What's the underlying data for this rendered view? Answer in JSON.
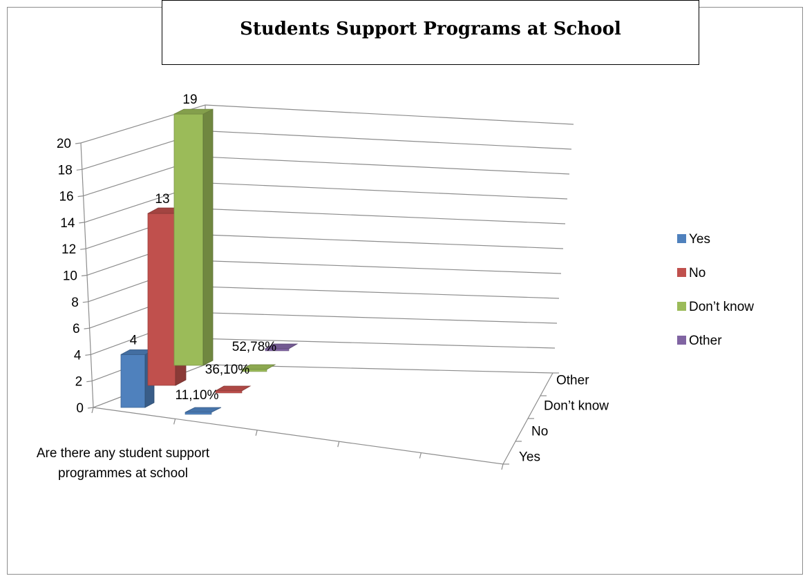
{
  "chart_data": {
    "type": "bar",
    "title": "Students Support Programs at School",
    "categories": [
      "Are there any student support programmes at school"
    ],
    "depth_categories": [
      "Yes",
      "No",
      "Don’t know",
      "Other"
    ],
    "series": [
      {
        "name": "Yes",
        "color": "#4f81bd",
        "count": 4,
        "percent_label": "11,10%"
      },
      {
        "name": "No",
        "color": "#c0504d",
        "count": 13,
        "percent_label": "36,10%"
      },
      {
        "name": "Don’t know",
        "color": "#9bbb59",
        "count": 19,
        "percent_label": "52,78%"
      },
      {
        "name": "Other",
        "color": "#8064a2",
        "count": 0,
        "percent_label": ""
      }
    ],
    "yticks": [
      0,
      2,
      4,
      6,
      8,
      10,
      12,
      14,
      16,
      18,
      20
    ],
    "ylim": [
      0,
      20
    ],
    "grid": true,
    "legend_position": "right"
  }
}
